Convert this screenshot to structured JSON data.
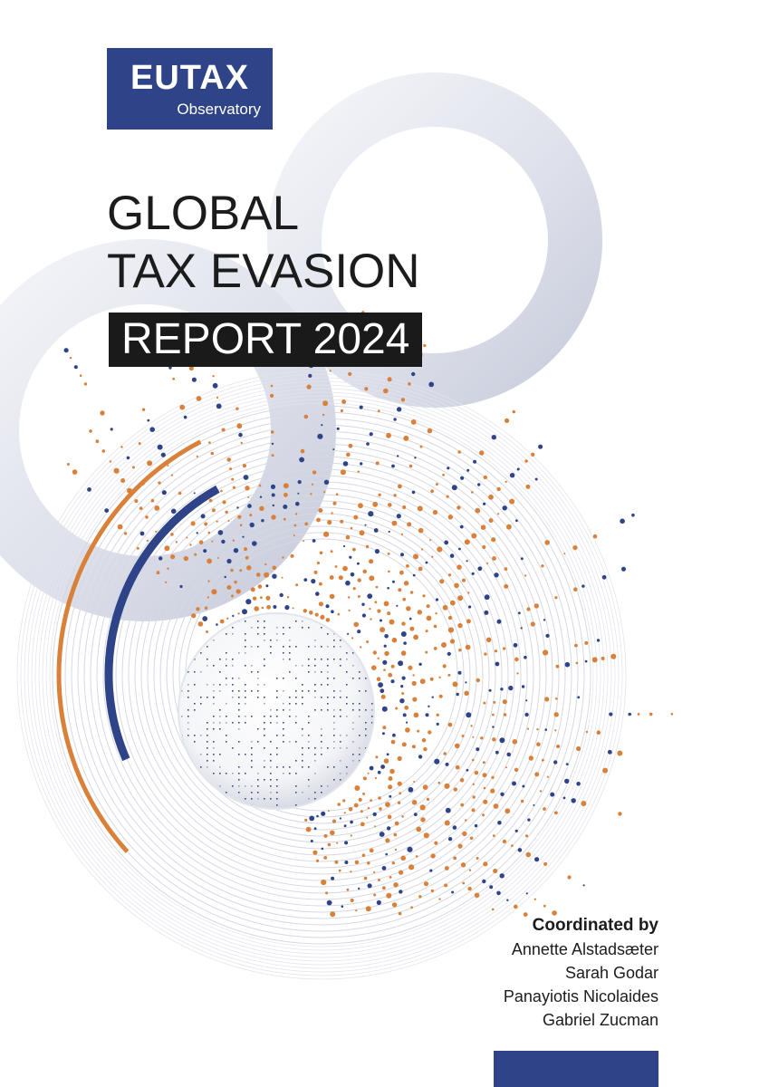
{
  "logo": {
    "name": "EUTAX",
    "subtitle": "Observatory",
    "color": "#2f4488"
  },
  "title": {
    "line1": "GLOBAL",
    "line2": "TAX EVASION",
    "line3": "REPORT 2024"
  },
  "credits": {
    "heading": "Coordinated by",
    "names": [
      "Annette Alstadsæter",
      "Sarah Godar",
      "Panayiotis Nicolaides",
      "Gabriel Zucman"
    ]
  },
  "colors": {
    "navy": "#2f4488",
    "orange": "#d9803b",
    "ring": "#dfe2ec",
    "title_bar": "#1a1a1a"
  }
}
